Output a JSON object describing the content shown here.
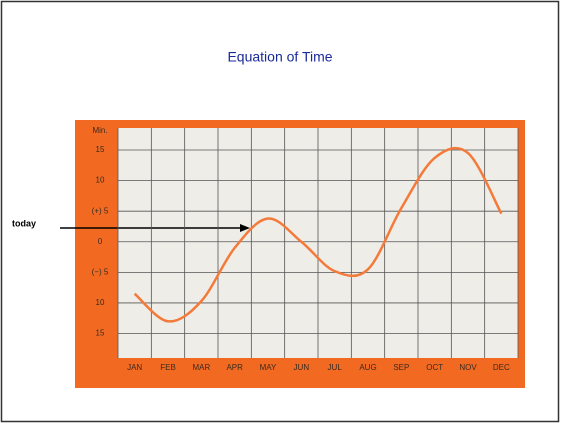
{
  "chart_data": {
    "type": "line",
    "title": "Equation of Time",
    "y_label": "Min.",
    "annotation": "today",
    "categories": [
      "JAN",
      "FEB",
      "MAR",
      "APR",
      "MAY",
      "JUN",
      "JUL",
      "AUG",
      "SEP",
      "OCT",
      "NOV",
      "DEC"
    ],
    "values": [
      -8.5,
      -13,
      -9.7,
      -1,
      3.8,
      0,
      -4.8,
      -4.5,
      5.5,
      13.7,
      14.5,
      4.6
    ],
    "color": "#f47a3a",
    "ylim": [
      -19,
      18.6
    ],
    "yticks": [
      15,
      10,
      {
        "value": 5,
        "label": "(+) 5"
      },
      0,
      {
        "value": -5,
        "label": "(−) 5"
      },
      {
        "value": -10,
        "label": "10"
      },
      {
        "value": -15,
        "label": "15"
      }
    ],
    "grid": true
  }
}
